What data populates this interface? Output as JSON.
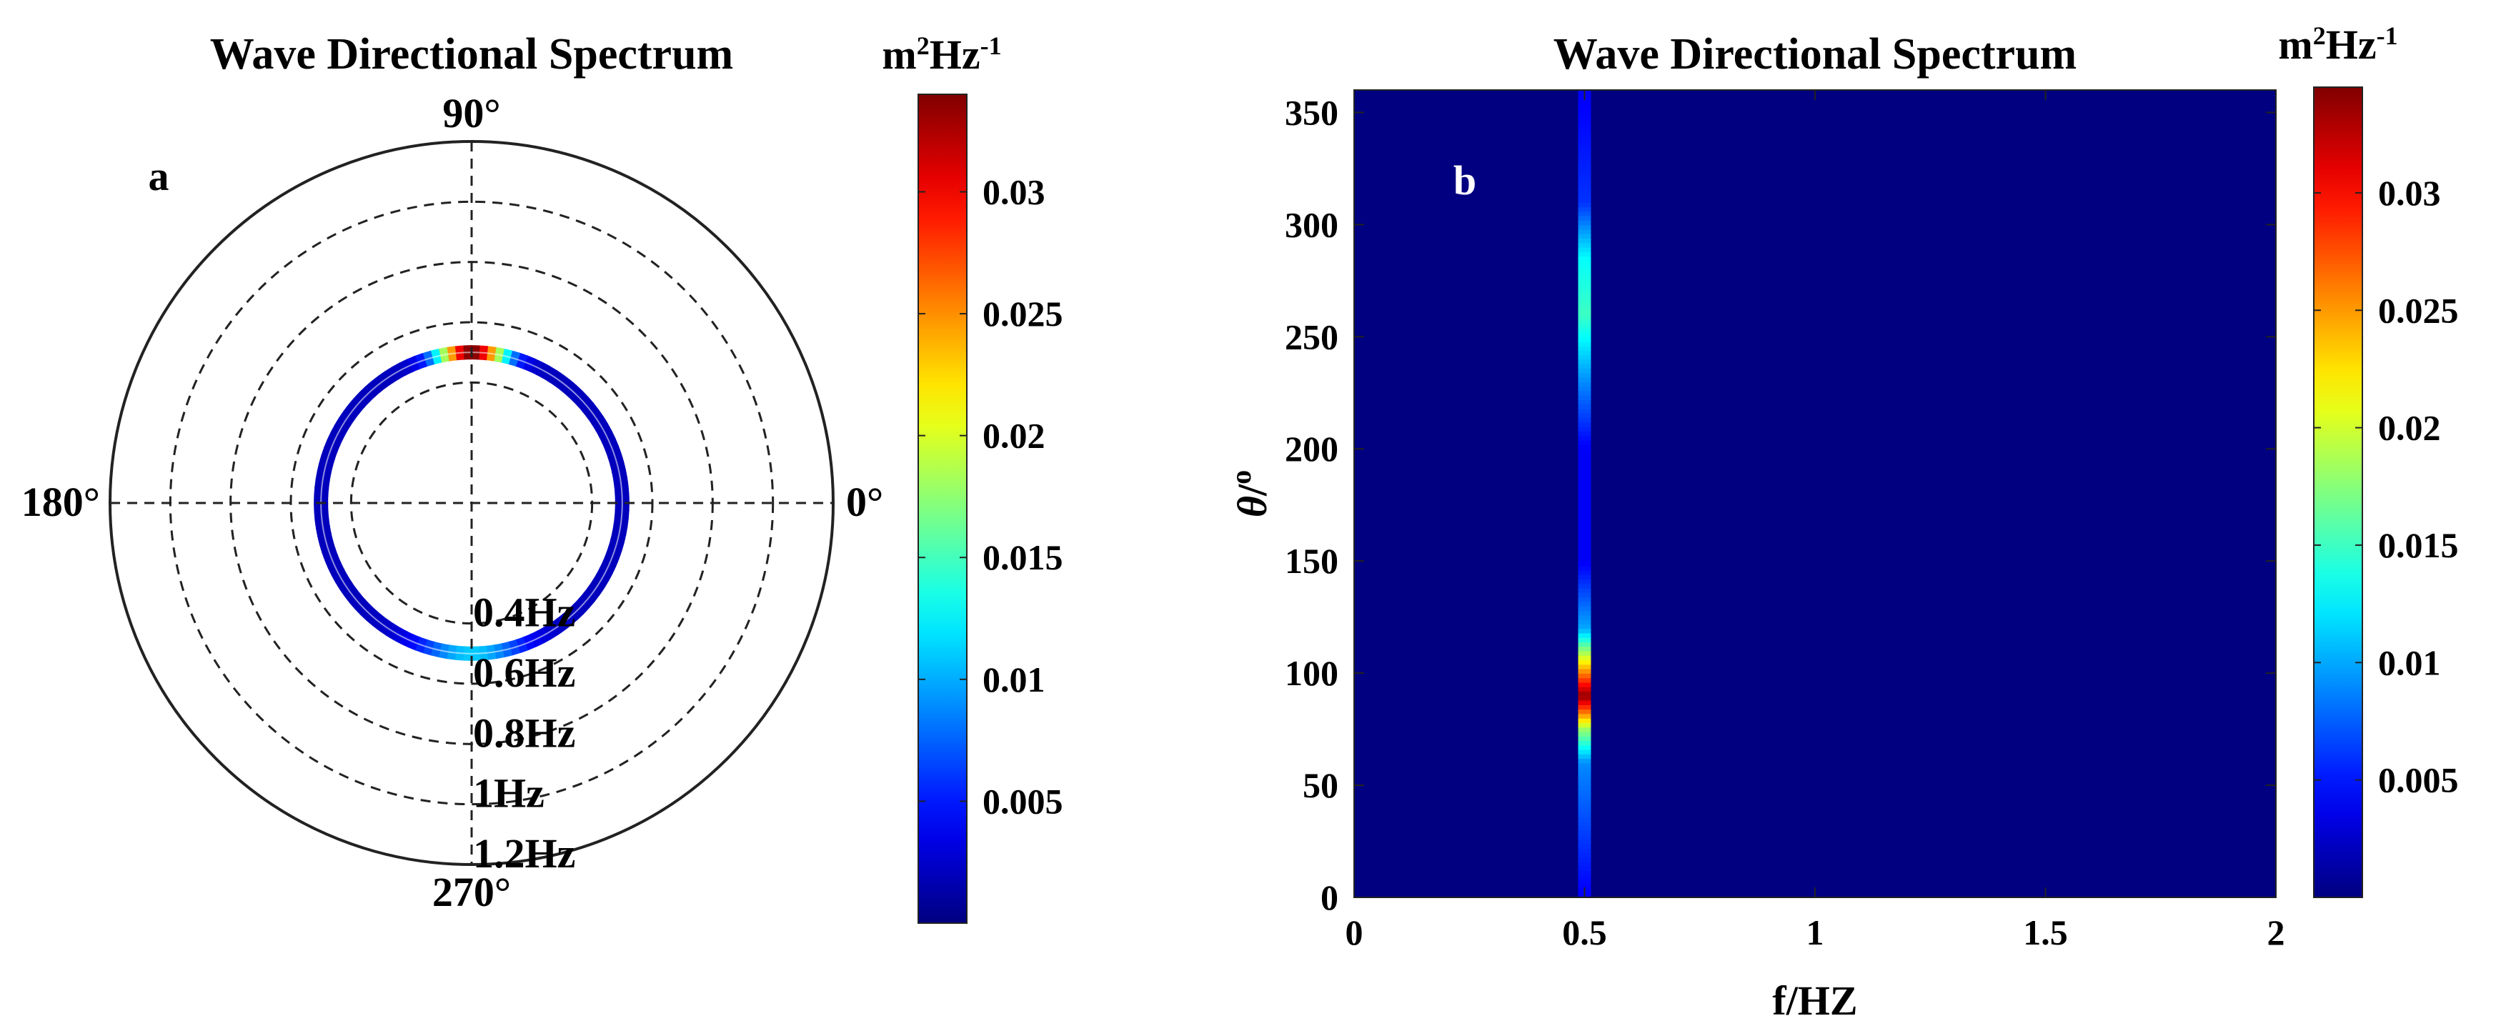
{
  "colormap_name": "jet",
  "chart_data": [
    {
      "id": "a",
      "type": "polar-spectrum",
      "panel_label": "a",
      "title": "Wave Directional Spectrum",
      "angle_labels": [
        {
          "angle": 90,
          "text": "90°"
        },
        {
          "angle": 180,
          "text": "180°"
        },
        {
          "angle": 0,
          "text": "0°"
        },
        {
          "angle": 270,
          "text": "270°"
        }
      ],
      "radial_unit": "Hz",
      "rings": [
        {
          "value": 0.4,
          "text": "0.4Hz"
        },
        {
          "value": 0.6,
          "text": "0.6Hz"
        },
        {
          "value": 0.8,
          "text": "0.8Hz"
        },
        {
          "value": 1.0,
          "text": "1Hz"
        },
        {
          "value": 1.2,
          "text": "1.2Hz"
        }
      ],
      "rmax": 1.2,
      "spectrum_frequency_hz": 0.5,
      "peak_direction_deg": 90,
      "peak_value": 0.034,
      "secondary_direction_deg": 270,
      "secondary_value": 0.011,
      "background_value": 0.002,
      "colorbar": {
        "label": "m²Hz⁻¹",
        "label_base": "m",
        "label_sup1": "2",
        "label_mid": "Hz",
        "label_sup2": "-1",
        "vmin": 0.0,
        "vmax": 0.034,
        "ticks": [
          0.005,
          0.01,
          0.015,
          0.02,
          0.025,
          0.03
        ],
        "tick_labels": [
          "0.005",
          "0.01",
          "0.015",
          "0.02",
          "0.025",
          "0.03"
        ]
      }
    },
    {
      "id": "b",
      "type": "heatmap",
      "panel_label": "b",
      "title": "Wave Directional Spectrum",
      "xlabel": "f/HZ",
      "ylabel": "θ/o",
      "ylabel_theta": "θ",
      "ylabel_sep": "/",
      "ylabel_sup": "o",
      "xlim": [
        0,
        2
      ],
      "ylim": [
        0,
        360
      ],
      "xticks": [
        0,
        0.5,
        1,
        1.5,
        2
      ],
      "xtick_labels": [
        "0",
        "0.5",
        "1",
        "1.5",
        "2"
      ],
      "yticks": [
        0,
        50,
        100,
        150,
        200,
        250,
        300,
        350
      ],
      "ytick_labels": [
        "0",
        "50",
        "100",
        "150",
        "200",
        "250",
        "300",
        "350"
      ],
      "ridge_frequency_hz": 0.5,
      "ridge_profile": [
        {
          "theta": 0,
          "value": 0.004
        },
        {
          "theta": 60,
          "value": 0.009
        },
        {
          "theta": 75,
          "value": 0.018
        },
        {
          "theta": 90,
          "value": 0.034
        },
        {
          "theta": 105,
          "value": 0.022
        },
        {
          "theta": 120,
          "value": 0.01
        },
        {
          "theta": 150,
          "value": 0.004
        },
        {
          "theta": 200,
          "value": 0.004
        },
        {
          "theta": 230,
          "value": 0.009
        },
        {
          "theta": 260,
          "value": 0.015
        },
        {
          "theta": 285,
          "value": 0.013
        },
        {
          "theta": 310,
          "value": 0.006
        },
        {
          "theta": 360,
          "value": 0.004
        }
      ],
      "background_value": 0.0,
      "colorbar": {
        "label": "m²Hz⁻¹",
        "label_base": "m",
        "label_sup1": "2",
        "label_mid": "Hz",
        "label_sup2": "-1",
        "vmin": 0.0,
        "vmax": 0.0345,
        "ticks": [
          0.005,
          0.01,
          0.015,
          0.02,
          0.025,
          0.03
        ],
        "tick_labels": [
          "0.005",
          "0.01",
          "0.015",
          "0.02",
          "0.025",
          "0.03"
        ]
      }
    }
  ]
}
